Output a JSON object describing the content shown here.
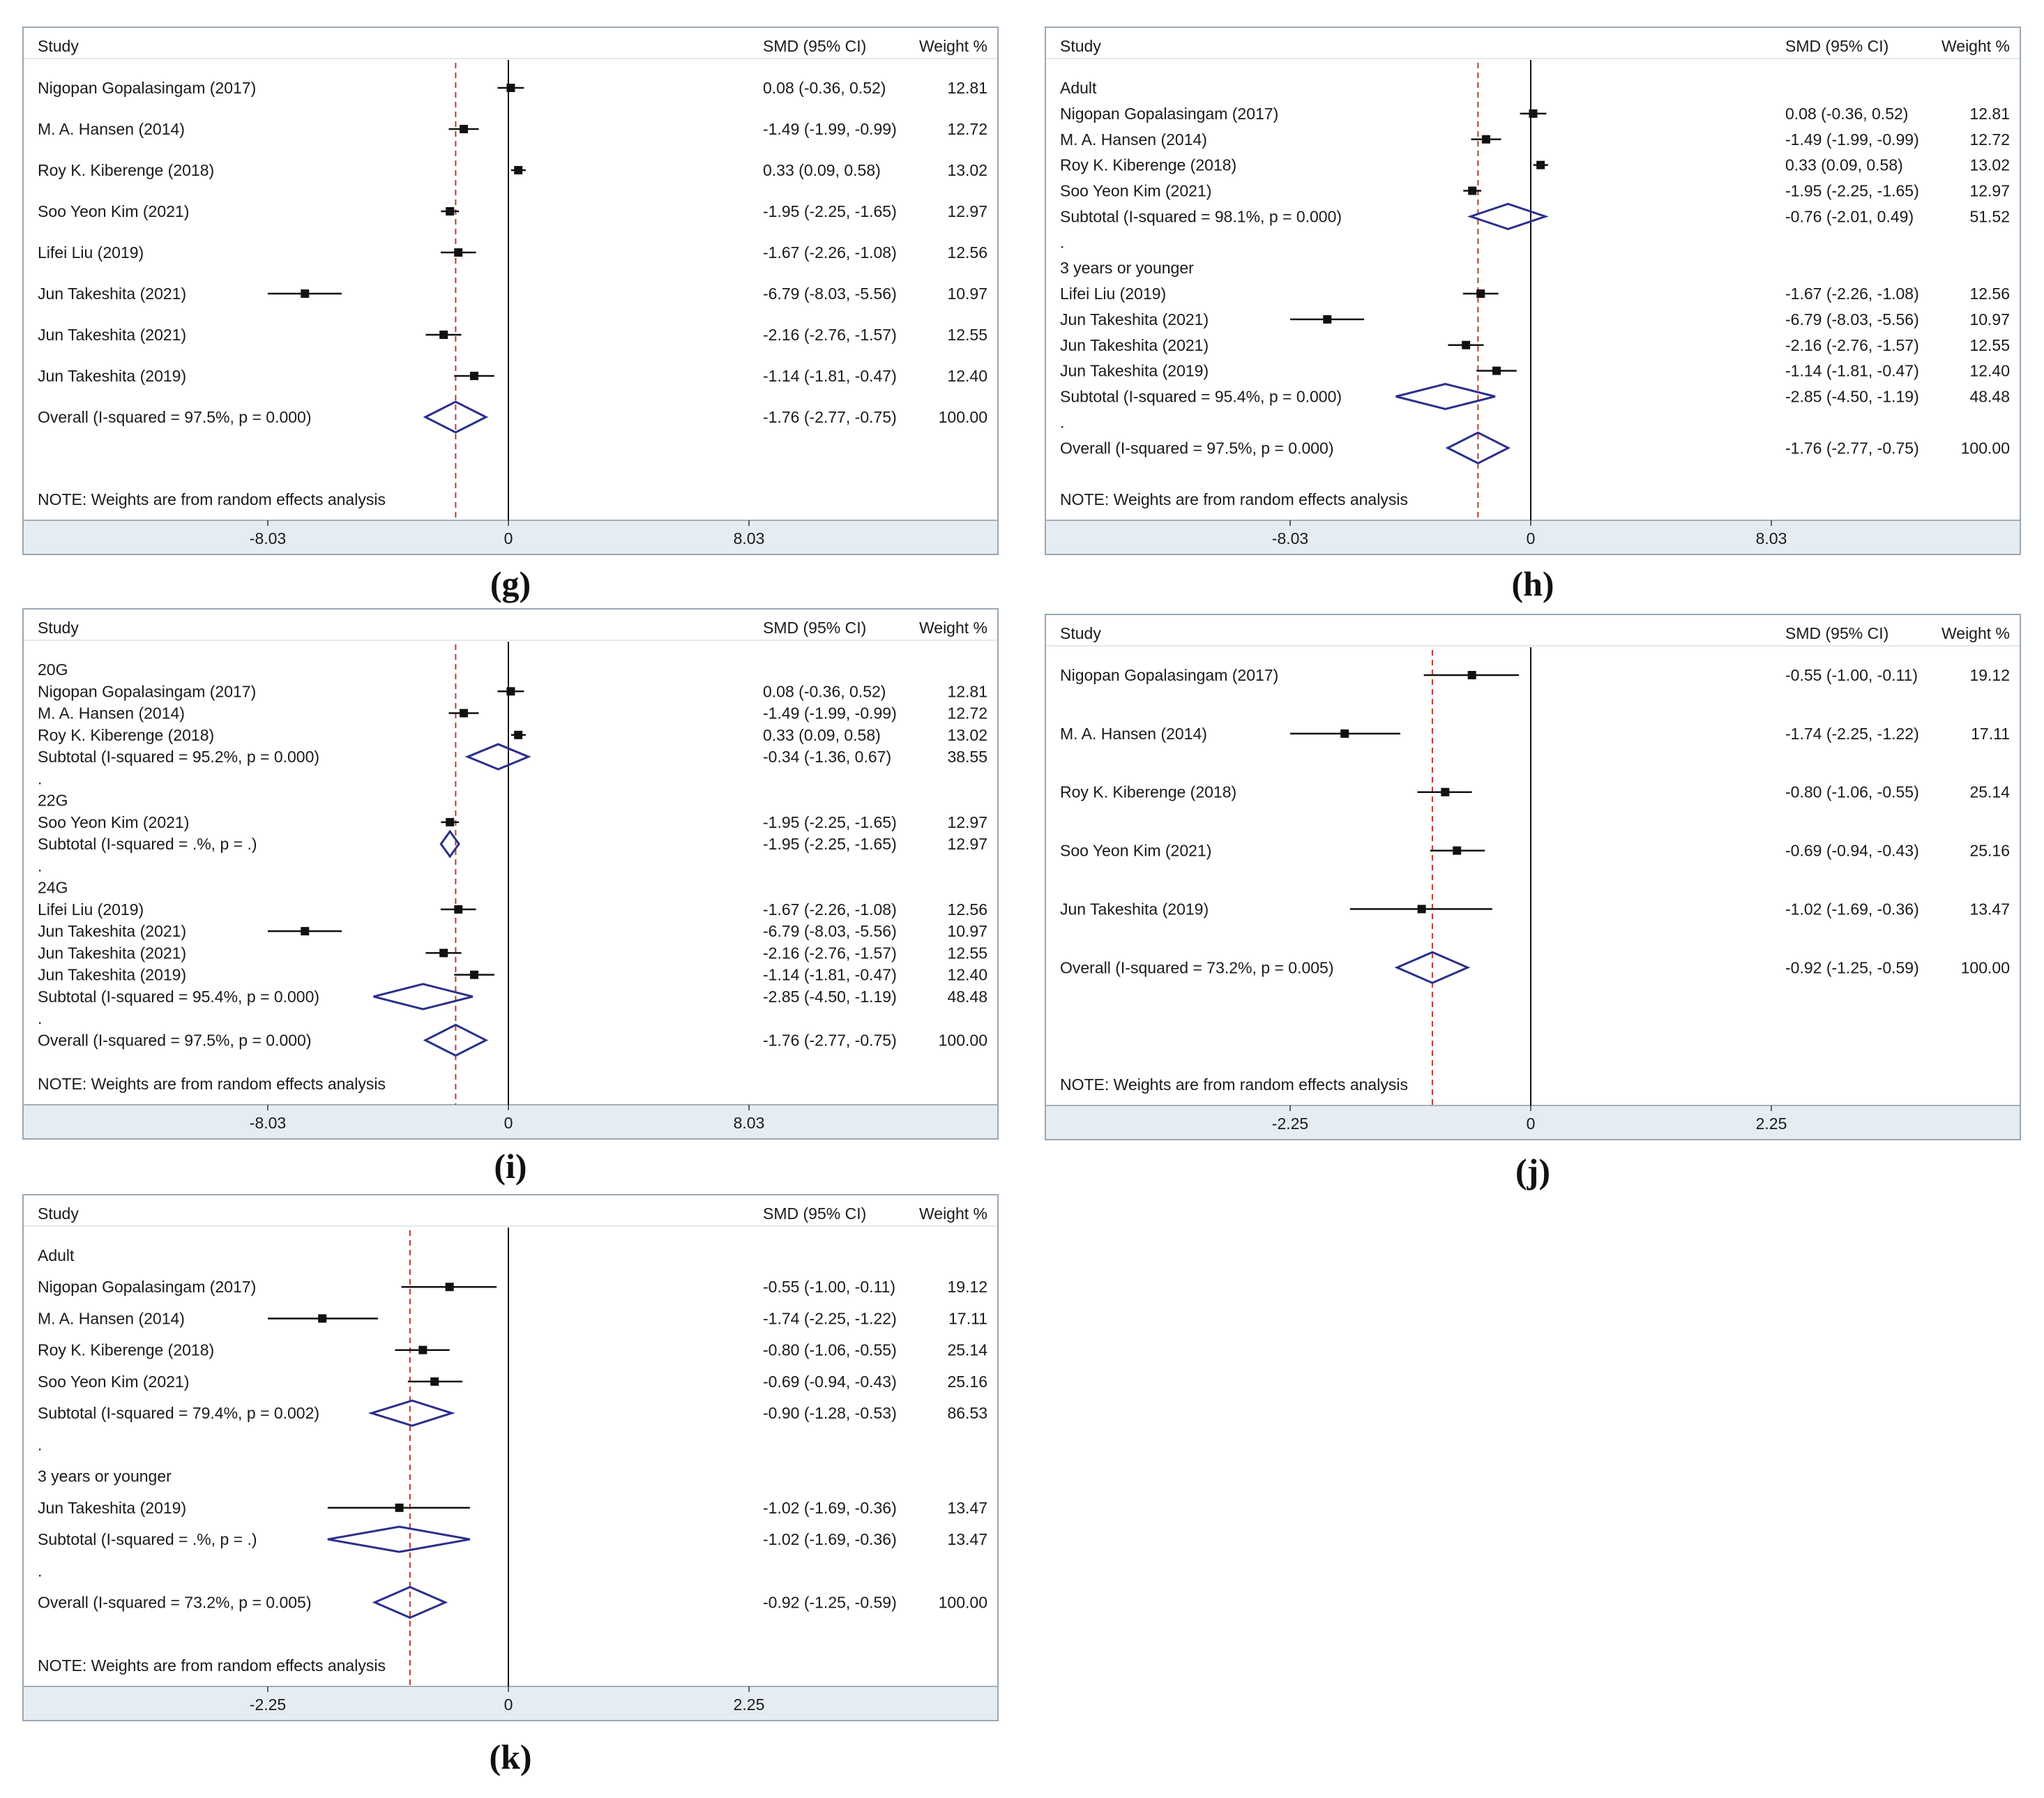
{
  "chart_data": [
    {
      "id": "g",
      "panel_label": "(g)",
      "type": "forest",
      "header": {
        "study": "Study",
        "effect": "SMD (95% CI)",
        "weight": "Weight %"
      },
      "xaxis": {
        "min": -8.03,
        "max": 8.03,
        "ticks": [
          "-8.03",
          "0",
          "8.03"
        ]
      },
      "overall_line": -1.76,
      "rows": [
        {
          "kind": "study",
          "label": "Nigopan Gopalasingam (2017)",
          "est": 0.08,
          "lo": -0.36,
          "hi": 0.52,
          "ci": "0.08 (-0.36, 0.52)",
          "w": "12.81"
        },
        {
          "kind": "study",
          "label": "M. A. Hansen (2014)",
          "est": -1.49,
          "lo": -1.99,
          "hi": -0.99,
          "ci": "-1.49 (-1.99, -0.99)",
          "w": "12.72"
        },
        {
          "kind": "study",
          "label": "Roy K. Kiberenge (2018)",
          "est": 0.33,
          "lo": 0.09,
          "hi": 0.58,
          "ci": "0.33 (0.09, 0.58)",
          "w": "13.02"
        },
        {
          "kind": "study",
          "label": "Soo Yeon Kim (2021)",
          "est": -1.95,
          "lo": -2.25,
          "hi": -1.65,
          "ci": "-1.95 (-2.25, -1.65)",
          "w": "12.97"
        },
        {
          "kind": "study",
          "label": "Lifei Liu (2019)",
          "est": -1.67,
          "lo": -2.26,
          "hi": -1.08,
          "ci": "-1.67 (-2.26, -1.08)",
          "w": "12.56"
        },
        {
          "kind": "study",
          "label": "Jun Takeshita (2021)",
          "est": -6.79,
          "lo": -8.03,
          "hi": -5.56,
          "ci": "-6.79 (-8.03, -5.56)",
          "w": "10.97"
        },
        {
          "kind": "study",
          "label": "Jun Takeshita (2021)",
          "est": -2.16,
          "lo": -2.76,
          "hi": -1.57,
          "ci": "-2.16 (-2.76, -1.57)",
          "w": "12.55"
        },
        {
          "kind": "study",
          "label": "Jun Takeshita (2019)",
          "est": -1.14,
          "lo": -1.81,
          "hi": -0.47,
          "ci": "-1.14 (-1.81, -0.47)",
          "w": "12.40"
        },
        {
          "kind": "overall",
          "label": "Overall  (I-squared = 97.5%, p = 0.000)",
          "est": -1.76,
          "lo": -2.77,
          "hi": -0.75,
          "ci": "-1.76 (-2.77, -0.75)",
          "w": "100.00"
        },
        {
          "kind": "blank"
        },
        {
          "kind": "note",
          "label": "NOTE: Weights are from random effects analysis"
        }
      ]
    },
    {
      "id": "h",
      "panel_label": "(h)",
      "type": "forest",
      "header": {
        "study": "Study",
        "effect": "SMD (95% CI)",
        "weight": "Weight %"
      },
      "xaxis": {
        "min": -8.03,
        "max": 8.03,
        "ticks": [
          "-8.03",
          "0",
          "8.03"
        ]
      },
      "overall_line": -1.76,
      "rows": [
        {
          "kind": "group",
          "label": "Adult"
        },
        {
          "kind": "study",
          "label": "Nigopan Gopalasingam (2017)",
          "est": 0.08,
          "lo": -0.36,
          "hi": 0.52,
          "ci": "0.08 (-0.36, 0.52)",
          "w": "12.81"
        },
        {
          "kind": "study",
          "label": "M. A. Hansen (2014)",
          "est": -1.49,
          "lo": -1.99,
          "hi": -0.99,
          "ci": "-1.49 (-1.99, -0.99)",
          "w": "12.72"
        },
        {
          "kind": "study",
          "label": "Roy K. Kiberenge (2018)",
          "est": 0.33,
          "lo": 0.09,
          "hi": 0.58,
          "ci": "0.33 (0.09, 0.58)",
          "w": "13.02"
        },
        {
          "kind": "study",
          "label": "Soo Yeon Kim (2021)",
          "est": -1.95,
          "lo": -2.25,
          "hi": -1.65,
          "ci": "-1.95 (-2.25, -1.65)",
          "w": "12.97"
        },
        {
          "kind": "subtotal",
          "label": "Subtotal  (I-squared = 98.1%, p = 0.000)",
          "est": -0.76,
          "lo": -2.01,
          "hi": 0.49,
          "ci": "-0.76 (-2.01, 0.49)",
          "w": "51.52"
        },
        {
          "kind": "dot",
          "label": "."
        },
        {
          "kind": "group",
          "label": "3 years or younger"
        },
        {
          "kind": "study",
          "label": "Lifei Liu (2019)",
          "est": -1.67,
          "lo": -2.26,
          "hi": -1.08,
          "ci": "-1.67 (-2.26, -1.08)",
          "w": "12.56"
        },
        {
          "kind": "study",
          "label": "Jun Takeshita (2021)",
          "est": -6.79,
          "lo": -8.03,
          "hi": -5.56,
          "ci": "-6.79 (-8.03, -5.56)",
          "w": "10.97"
        },
        {
          "kind": "study",
          "label": "Jun Takeshita (2021)",
          "est": -2.16,
          "lo": -2.76,
          "hi": -1.57,
          "ci": "-2.16 (-2.76, -1.57)",
          "w": "12.55"
        },
        {
          "kind": "study",
          "label": "Jun Takeshita (2019)",
          "est": -1.14,
          "lo": -1.81,
          "hi": -0.47,
          "ci": "-1.14 (-1.81, -0.47)",
          "w": "12.40"
        },
        {
          "kind": "subtotal",
          "label": "Subtotal  (I-squared = 95.4%, p = 0.000)",
          "est": -2.85,
          "lo": -4.5,
          "hi": -1.19,
          "ci": "-2.85 (-4.50, -1.19)",
          "w": "48.48"
        },
        {
          "kind": "dot",
          "label": "."
        },
        {
          "kind": "overall",
          "label": "Overall  (I-squared = 97.5%, p = 0.000)",
          "est": -1.76,
          "lo": -2.77,
          "hi": -0.75,
          "ci": "-1.76 (-2.77, -0.75)",
          "w": "100.00"
        },
        {
          "kind": "blank"
        },
        {
          "kind": "note",
          "label": "NOTE: Weights are from random effects analysis"
        }
      ]
    },
    {
      "id": "i",
      "panel_label": "(i)",
      "type": "forest",
      "header": {
        "study": "Study",
        "effect": "SMD (95% CI)",
        "weight": "Weight %"
      },
      "xaxis": {
        "min": -8.03,
        "max": 8.03,
        "ticks": [
          "-8.03",
          "0",
          "8.03"
        ]
      },
      "overall_line": -1.76,
      "rows": [
        {
          "kind": "group",
          "label": "20G"
        },
        {
          "kind": "study",
          "label": "Nigopan Gopalasingam (2017)",
          "est": 0.08,
          "lo": -0.36,
          "hi": 0.52,
          "ci": "0.08 (-0.36, 0.52)",
          "w": "12.81"
        },
        {
          "kind": "study",
          "label": "M. A. Hansen (2014)",
          "est": -1.49,
          "lo": -1.99,
          "hi": -0.99,
          "ci": "-1.49 (-1.99, -0.99)",
          "w": "12.72"
        },
        {
          "kind": "study",
          "label": "Roy K. Kiberenge (2018)",
          "est": 0.33,
          "lo": 0.09,
          "hi": 0.58,
          "ci": "0.33 (0.09, 0.58)",
          "w": "13.02"
        },
        {
          "kind": "subtotal",
          "label": "Subtotal  (I-squared = 95.2%, p = 0.000)",
          "est": -0.34,
          "lo": -1.36,
          "hi": 0.67,
          "ci": "-0.34 (-1.36, 0.67)",
          "w": "38.55"
        },
        {
          "kind": "dot",
          "label": "."
        },
        {
          "kind": "group",
          "label": "22G"
        },
        {
          "kind": "study",
          "label": "Soo Yeon Kim (2021)",
          "est": -1.95,
          "lo": -2.25,
          "hi": -1.65,
          "ci": "-1.95 (-2.25, -1.65)",
          "w": "12.97"
        },
        {
          "kind": "subtotal",
          "label": "Subtotal  (I-squared = .%, p = .)",
          "est": -1.95,
          "lo": -2.25,
          "hi": -1.65,
          "ci": "-1.95 (-2.25, -1.65)",
          "w": "12.97"
        },
        {
          "kind": "dot",
          "label": "."
        },
        {
          "kind": "group",
          "label": "24G"
        },
        {
          "kind": "study",
          "label": "Lifei Liu (2019)",
          "est": -1.67,
          "lo": -2.26,
          "hi": -1.08,
          "ci": "-1.67 (-2.26, -1.08)",
          "w": "12.56"
        },
        {
          "kind": "study",
          "label": "Jun Takeshita (2021)",
          "est": -6.79,
          "lo": -8.03,
          "hi": -5.56,
          "ci": "-6.79 (-8.03, -5.56)",
          "w": "10.97"
        },
        {
          "kind": "study",
          "label": "Jun Takeshita (2021)",
          "est": -2.16,
          "lo": -2.76,
          "hi": -1.57,
          "ci": "-2.16 (-2.76, -1.57)",
          "w": "12.55"
        },
        {
          "kind": "study",
          "label": "Jun Takeshita (2019)",
          "est": -1.14,
          "lo": -1.81,
          "hi": -0.47,
          "ci": "-1.14 (-1.81, -0.47)",
          "w": "12.40"
        },
        {
          "kind": "subtotal",
          "label": "Subtotal  (I-squared = 95.4%, p = 0.000)",
          "est": -2.85,
          "lo": -4.5,
          "hi": -1.19,
          "ci": "-2.85 (-4.50, -1.19)",
          "w": "48.48"
        },
        {
          "kind": "dot",
          "label": "."
        },
        {
          "kind": "overall",
          "label": "Overall  (I-squared = 97.5%, p = 0.000)",
          "est": -1.76,
          "lo": -2.77,
          "hi": -0.75,
          "ci": "-1.76 (-2.77, -0.75)",
          "w": "100.00"
        },
        {
          "kind": "blank"
        },
        {
          "kind": "note",
          "label": "NOTE: Weights are from random effects analysis"
        }
      ]
    },
    {
      "id": "j",
      "panel_label": "(j)",
      "type": "forest",
      "header": {
        "study": "Study",
        "effect": "SMD (95% CI)",
        "weight": "Weight %"
      },
      "xaxis": {
        "min": -2.25,
        "max": 2.25,
        "ticks": [
          "-2.25",
          "0",
          "2.25"
        ]
      },
      "overall_line": -0.92,
      "rows": [
        {
          "kind": "study",
          "label": "Nigopan Gopalasingam (2017)",
          "est": -0.55,
          "lo": -1.0,
          "hi": -0.11,
          "ci": "-0.55 (-1.00, -0.11)",
          "w": "19.12"
        },
        {
          "kind": "study",
          "label": "M. A. Hansen (2014)",
          "est": -1.74,
          "lo": -2.25,
          "hi": -1.22,
          "ci": "-1.74 (-2.25, -1.22)",
          "w": "17.11"
        },
        {
          "kind": "study",
          "label": "Roy K. Kiberenge (2018)",
          "est": -0.8,
          "lo": -1.06,
          "hi": -0.55,
          "ci": "-0.80 (-1.06, -0.55)",
          "w": "25.14"
        },
        {
          "kind": "study",
          "label": "Soo Yeon Kim (2021)",
          "est": -0.69,
          "lo": -0.94,
          "hi": -0.43,
          "ci": "-0.69 (-0.94, -0.43)",
          "w": "25.16"
        },
        {
          "kind": "study",
          "label": "Jun Takeshita (2019)",
          "est": -1.02,
          "lo": -1.69,
          "hi": -0.36,
          "ci": "-1.02 (-1.69, -0.36)",
          "w": "13.47"
        },
        {
          "kind": "overall",
          "label": "Overall  (I-squared = 73.2%, p = 0.005)",
          "est": -0.92,
          "lo": -1.25,
          "hi": -0.59,
          "ci": "-0.92 (-1.25, -0.59)",
          "w": "100.00"
        },
        {
          "kind": "blank"
        },
        {
          "kind": "note",
          "label": "NOTE: Weights are from random effects analysis"
        }
      ]
    },
    {
      "id": "k",
      "panel_label": "(k)",
      "type": "forest",
      "header": {
        "study": "Study",
        "effect": "SMD (95% CI)",
        "weight": "Weight %"
      },
      "xaxis": {
        "min": -2.25,
        "max": 2.25,
        "ticks": [
          "-2.25",
          "0",
          "2.25"
        ]
      },
      "overall_line": -0.92,
      "rows": [
        {
          "kind": "group",
          "label": "Adult"
        },
        {
          "kind": "study",
          "label": "Nigopan Gopalasingam (2017)",
          "est": -0.55,
          "lo": -1.0,
          "hi": -0.11,
          "ci": "-0.55 (-1.00, -0.11)",
          "w": "19.12"
        },
        {
          "kind": "study",
          "label": "M. A. Hansen (2014)",
          "est": -1.74,
          "lo": -2.25,
          "hi": -1.22,
          "ci": "-1.74 (-2.25, -1.22)",
          "w": "17.11"
        },
        {
          "kind": "study",
          "label": "Roy K. Kiberenge (2018)",
          "est": -0.8,
          "lo": -1.06,
          "hi": -0.55,
          "ci": "-0.80 (-1.06, -0.55)",
          "w": "25.14"
        },
        {
          "kind": "study",
          "label": "Soo Yeon Kim (2021)",
          "est": -0.69,
          "lo": -0.94,
          "hi": -0.43,
          "ci": "-0.69 (-0.94, -0.43)",
          "w": "25.16"
        },
        {
          "kind": "subtotal",
          "label": "Subtotal  (I-squared = 79.4%, p = 0.002)",
          "est": -0.9,
          "lo": -1.28,
          "hi": -0.53,
          "ci": "-0.90 (-1.28, -0.53)",
          "w": "86.53"
        },
        {
          "kind": "dot",
          "label": "."
        },
        {
          "kind": "group",
          "label": "3 years or younger"
        },
        {
          "kind": "study",
          "label": "Jun Takeshita (2019)",
          "est": -1.02,
          "lo": -1.69,
          "hi": -0.36,
          "ci": "-1.02 (-1.69, -0.36)",
          "w": "13.47"
        },
        {
          "kind": "subtotal",
          "label": "Subtotal  (I-squared = .%, p = .)",
          "est": -1.02,
          "lo": -1.69,
          "hi": -0.36,
          "ci": "-1.02 (-1.69, -0.36)",
          "w": "13.47"
        },
        {
          "kind": "dot",
          "label": "."
        },
        {
          "kind": "overall",
          "label": "Overall  (I-squared = 73.2%, p = 0.005)",
          "est": -0.92,
          "lo": -1.25,
          "hi": -0.59,
          "ci": "-0.92 (-1.25, -0.59)",
          "w": "100.00"
        },
        {
          "kind": "blank"
        },
        {
          "kind": "note",
          "label": "NOTE: Weights are from random effects analysis"
        }
      ]
    }
  ],
  "colors": {
    "diamond": "#2b2f8a",
    "reference_line": "#c0392b",
    "axis_band": "#e6edf2",
    "border": "#9aa7b3"
  }
}
